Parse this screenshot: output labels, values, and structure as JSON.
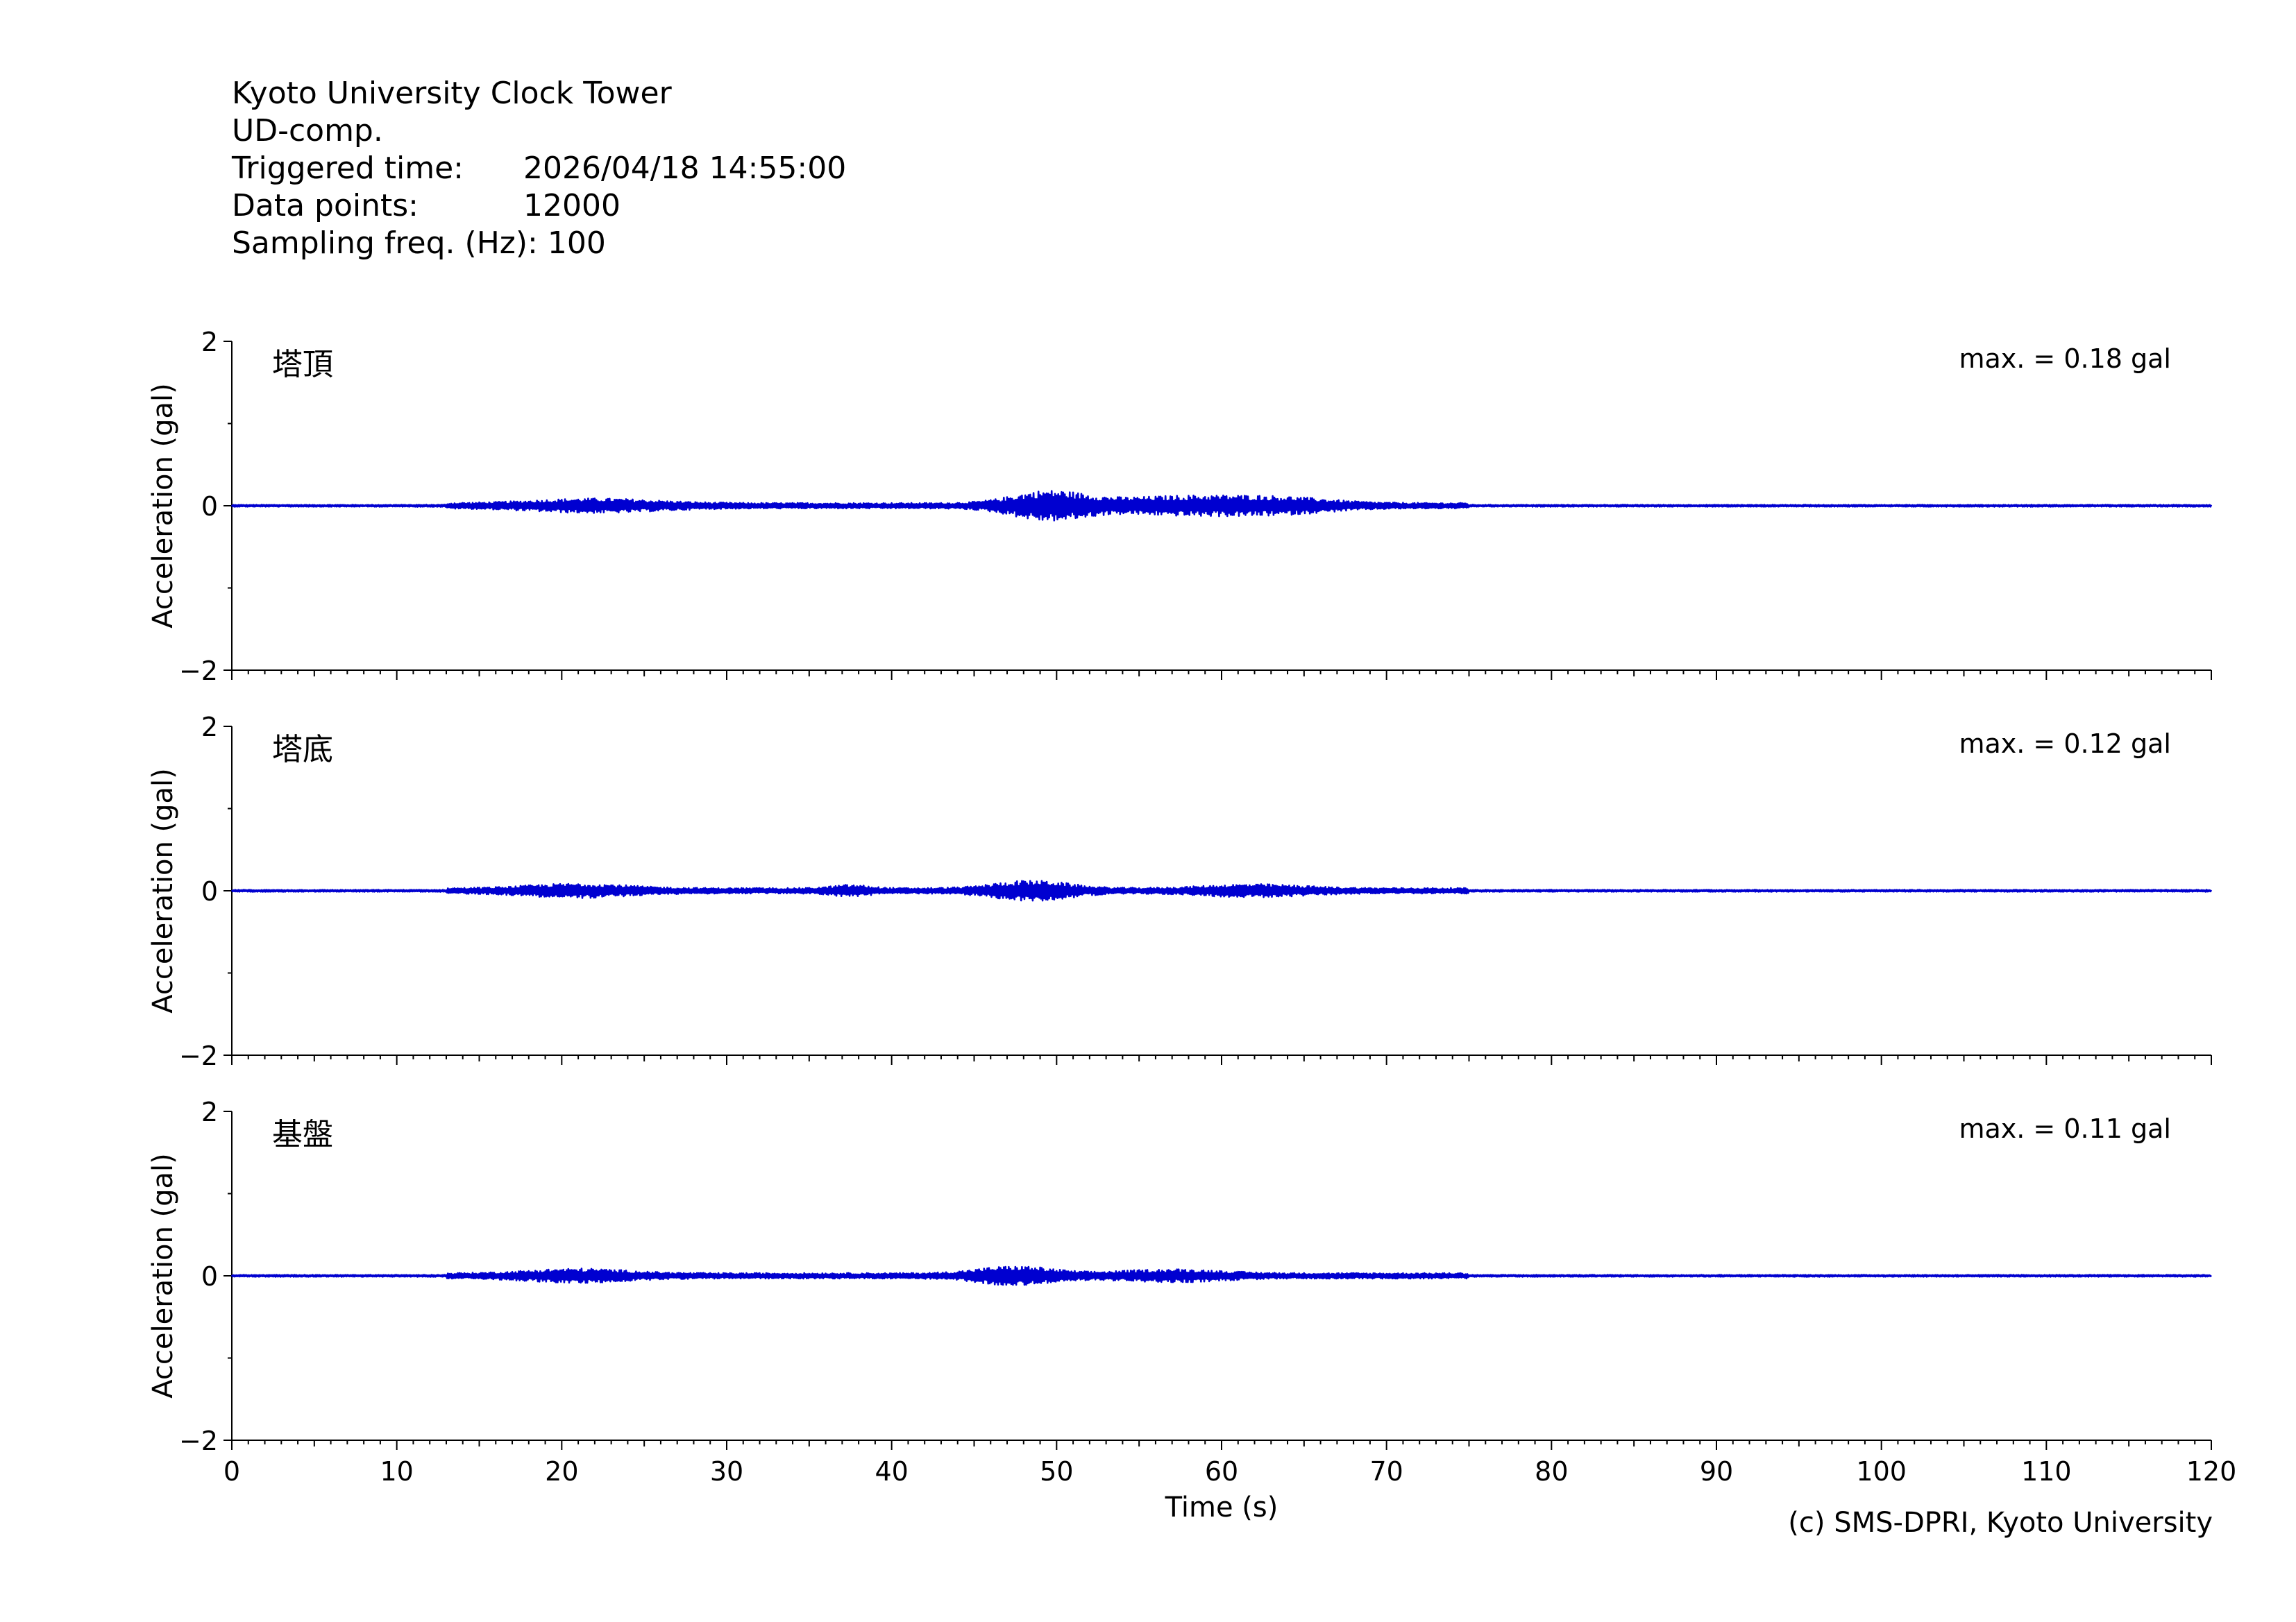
{
  "header": {
    "station": "Kyoto University Clock Tower",
    "component": "UD-comp.",
    "triggered_label": "Triggered time:",
    "triggered_value": "2026/04/18 14:55:00",
    "points_label": "Data points:",
    "points_value": "12000",
    "freq_label": "Sampling freq. (Hz):",
    "freq_value": "100"
  },
  "credit": "(c) SMS-DPRI, Kyoto University",
  "colors": {
    "trace": "#0000d0",
    "axis": "#000000"
  },
  "chart_data": [
    {
      "type": "line",
      "name": "塔頂",
      "max_label": "max. = 0.18 gal",
      "peak": 0.18,
      "ylabel": "Acceleration (gal)",
      "xlabel": "",
      "ylim": [
        -2,
        2
      ],
      "yticks": [
        "2",
        "0",
        "−2"
      ],
      "xlim": [
        0,
        120
      ],
      "bursts": [
        {
          "t": 22,
          "amp": 0.07,
          "width": 5
        },
        {
          "t": 49.5,
          "amp": 0.18,
          "width": 3
        },
        {
          "t": 58,
          "amp": 0.11,
          "width": 6
        },
        {
          "t": 64,
          "amp": 0.06,
          "width": 4
        }
      ]
    },
    {
      "type": "line",
      "name": "塔底",
      "max_label": "max. = 0.12 gal",
      "peak": 0.12,
      "ylabel": "Acceleration (gal)",
      "xlabel": "",
      "ylim": [
        -2,
        2
      ],
      "yticks": [
        "2",
        "0",
        "−2"
      ],
      "xlim": [
        0,
        120
      ],
      "bursts": [
        {
          "t": 21,
          "amp": 0.07,
          "width": 4
        },
        {
          "t": 37.5,
          "amp": 0.05,
          "width": 1.5
        },
        {
          "t": 48.5,
          "amp": 0.12,
          "width": 3
        },
        {
          "t": 62,
          "amp": 0.06,
          "width": 4
        }
      ]
    },
    {
      "type": "line",
      "name": "基盤",
      "max_label": "max. = 0.11 gal",
      "peak": 0.11,
      "ylabel": "Acceleration (gal)",
      "xlabel": "Time (s)",
      "ylim": [
        -2,
        2
      ],
      "yticks": [
        "2",
        "0",
        "−2"
      ],
      "xlim": [
        0,
        120
      ],
      "xticks": [
        "0",
        "10",
        "20",
        "30",
        "40",
        "50",
        "60",
        "70",
        "80",
        "90",
        "100",
        "110",
        "120"
      ],
      "bursts": [
        {
          "t": 21,
          "amp": 0.07,
          "width": 4
        },
        {
          "t": 47.5,
          "amp": 0.11,
          "width": 3
        },
        {
          "t": 57,
          "amp": 0.06,
          "width": 4
        }
      ]
    }
  ]
}
